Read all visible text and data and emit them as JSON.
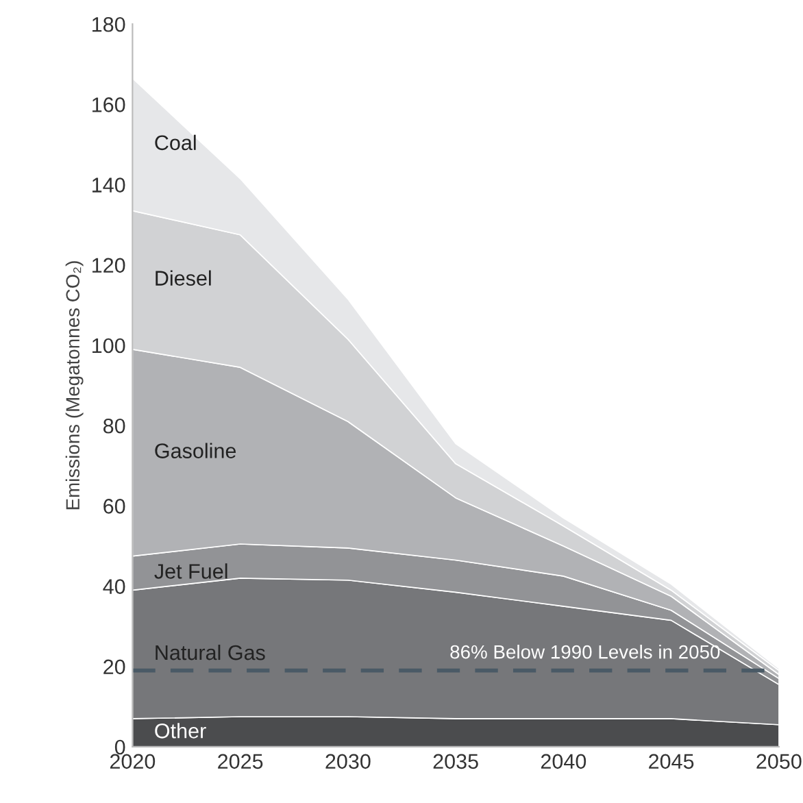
{
  "chart_data": {
    "type": "area",
    "stacked": true,
    "ylabel": "Emissions (Megatonnes CO₂)",
    "x": [
      2020,
      2025,
      2030,
      2035,
      2040,
      2045,
      2050
    ],
    "series": [
      {
        "name": "Other",
        "color": "#4b4c4e",
        "values": [
          7,
          7.5,
          7.5,
          7,
          7,
          7,
          5.5
        ]
      },
      {
        "name": "Natural Gas",
        "color": "#76777a",
        "values": [
          32,
          34.5,
          34,
          31.5,
          28,
          24.5,
          10
        ]
      },
      {
        "name": "Jet Fuel",
        "color": "#929396",
        "values": [
          8.5,
          8.5,
          8,
          8,
          7.5,
          2.5,
          1.5
        ]
      },
      {
        "name": "Gasoline",
        "color": "#b1b2b5",
        "values": [
          51.5,
          44,
          31.5,
          15.5,
          7.5,
          3.5,
          1
        ]
      },
      {
        "name": "Diesel",
        "color": "#d1d2d4",
        "values": [
          34.5,
          33,
          20.5,
          8.5,
          5,
          1.5,
          1
        ]
      },
      {
        "name": "Coal",
        "color": "#e6e7e9",
        "values": [
          33,
          14,
          10,
          5,
          2,
          1.5,
          0.5
        ]
      }
    ],
    "ref_lines": [
      {
        "axis": "y",
        "value": 19,
        "label": "86% Below 1990 Levels in 2050",
        "color": "#4a5a66",
        "line_style": "dashed"
      }
    ],
    "xlim": [
      2020,
      2050
    ],
    "xticks": [
      2020,
      2025,
      2030,
      2035,
      2040,
      2045,
      2050
    ],
    "ylim": [
      0,
      180
    ],
    "yticks": [
      0,
      20,
      40,
      60,
      80,
      100,
      120,
      140,
      160,
      180
    ],
    "grid": false,
    "legend": false
  }
}
